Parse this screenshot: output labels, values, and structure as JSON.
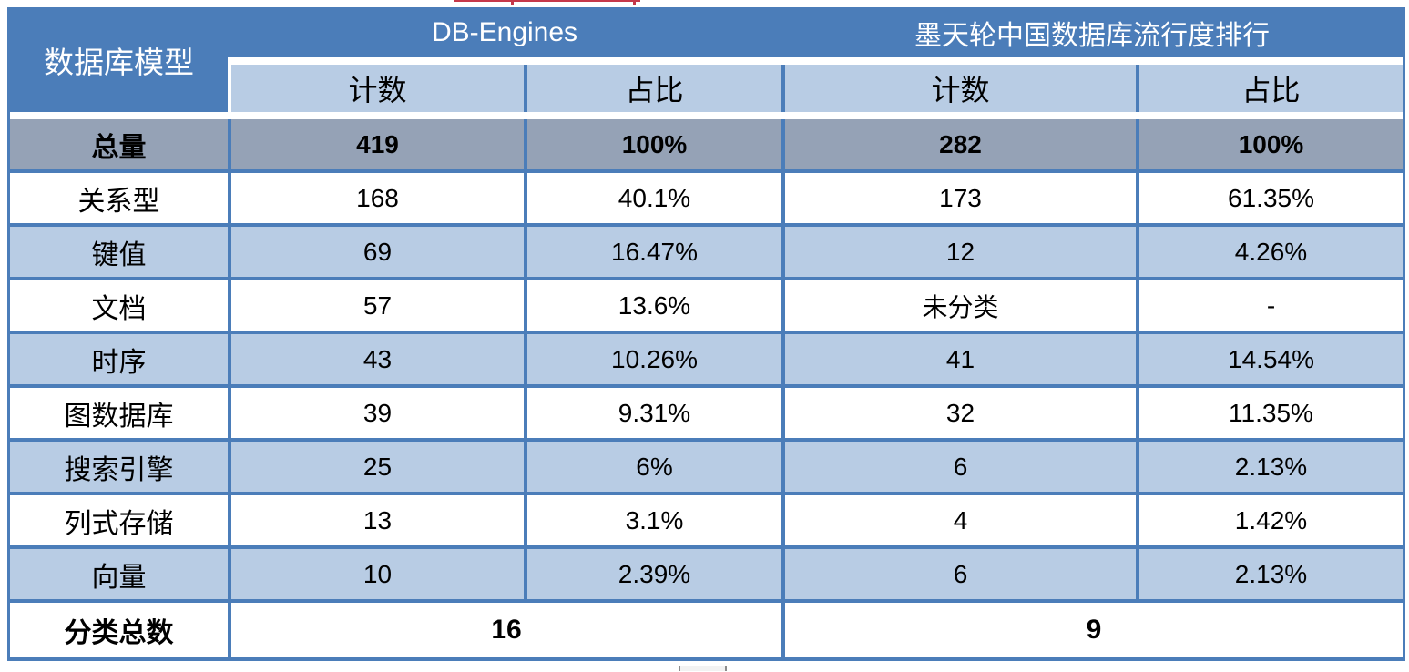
{
  "colors": {
    "accent_blue": "#4b7db9",
    "light_blue": "#b8cce4",
    "total_row_gray": "#95a2b6",
    "annotation_red": "#c5384a",
    "header_text": "#ffffff",
    "body_text": "#000000"
  },
  "table": {
    "corner_header": "数据库模型",
    "groups": [
      {
        "label": "DB-Engines"
      },
      {
        "label": "墨天轮中国数据库流行度排行"
      }
    ],
    "sub_headers": [
      "计数",
      "占比",
      "计数",
      "占比"
    ],
    "total_row": {
      "label": "总量",
      "values": [
        "419",
        "100%",
        "282",
        "100%"
      ]
    },
    "rows": [
      {
        "label": "关系型",
        "values": [
          "168",
          "40.1%",
          "173",
          "61.35%"
        ]
      },
      {
        "label": "键值",
        "values": [
          "69",
          "16.47%",
          "12",
          "4.26%"
        ]
      },
      {
        "label": "文档",
        "values": [
          "57",
          "13.6%",
          "未分类",
          "-"
        ]
      },
      {
        "label": "时序",
        "values": [
          "43",
          "10.26%",
          "41",
          "14.54%"
        ]
      },
      {
        "label": "图数据库",
        "values": [
          "39",
          "9.31%",
          "32",
          "11.35%"
        ]
      },
      {
        "label": "搜索引擎",
        "values": [
          "25",
          "6%",
          "6",
          "2.13%"
        ]
      },
      {
        "label": "列式存储",
        "values": [
          "13",
          "3.1%",
          "4",
          "1.42%"
        ]
      },
      {
        "label": "向量",
        "values": [
          "10",
          "2.39%",
          "6",
          "2.13%"
        ]
      }
    ],
    "footer_row": {
      "label": "分类总数",
      "db_engines_total": "16",
      "motianlun_total": "9"
    }
  }
}
